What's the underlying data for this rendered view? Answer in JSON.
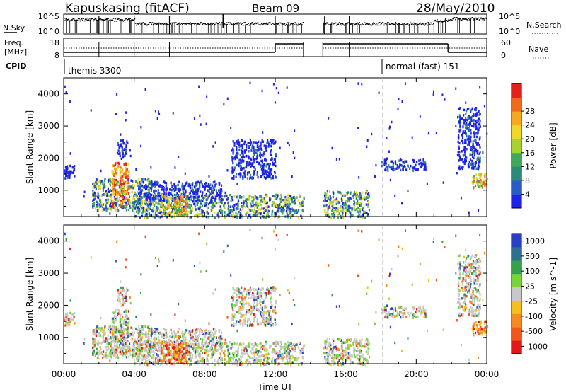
{
  "header": {
    "station": "Kapuskasing (fitACF)",
    "beam": "Beam 09",
    "date": "28/May/2010"
  },
  "top_panels": {
    "nsky_label": "N.Sky",
    "nsky_tick_high": "10^5",
    "nsky_tick_low": "10^0",
    "nsearch_label": "N.Search",
    "freq_label_1": "Freq.",
    "freq_label_2": "[MHz]",
    "freq_tick_high": "18",
    "freq_tick_low": "8",
    "nave_tick_high": "60",
    "nave_tick_low": "0",
    "nave_label": "Nave",
    "cpid_label": "CPID",
    "cpid_segments": [
      {
        "name": "themis 3300",
        "start_hr": 0
      },
      {
        "name": "normal (fast) 151",
        "start_hr": 18
      }
    ]
  },
  "x_axis": {
    "label": "Time UT",
    "ticks": [
      "00:00",
      "04:00",
      "08:00",
      "12:00",
      "16:00",
      "20:00",
      "00:00"
    ]
  },
  "y_axis": {
    "label": "Slant Range [km]",
    "ticks": [
      "1000",
      "2000",
      "3000",
      "4000"
    ]
  },
  "power_colorbar": {
    "label": "Power [dB]",
    "ticks": [
      "4",
      "8",
      "12",
      "16",
      "20",
      "24",
      "28"
    ],
    "colors": [
      "#1f22e8",
      "#2b5cc4",
      "#2d8a79",
      "#3fa85a",
      "#a8d32e",
      "#f2d72b",
      "#f7a81f",
      "#f06a1b",
      "#e5201a"
    ]
  },
  "velocity_colorbar": {
    "label": "Velocity [m s^-1]",
    "ticks": [
      "1000",
      "500",
      "100",
      "25",
      "-25",
      "-100",
      "-500",
      "-1000"
    ],
    "colors": [
      "#2a3fc4",
      "#2f6f8f",
      "#36a04d",
      "#78d634",
      "#c8c8c8",
      "#f5c01f",
      "#f58a1e",
      "#f3561b",
      "#e01818"
    ]
  },
  "chart_data": {
    "type": "heatmap",
    "x_range_hours": [
      0,
      24
    ],
    "y_range_km": [
      180,
      4500
    ],
    "data_gap_hours": [
      13.6,
      14.7
    ],
    "mode_change_hour": 18,
    "power_panel_scatter_regions": [
      {
        "t0": 0.0,
        "t1": 0.6,
        "r0": 1400,
        "r1": 1800,
        "level": "blue"
      },
      {
        "t0": 1.6,
        "t1": 5.0,
        "r0": 400,
        "r1": 1400,
        "level": "mixed"
      },
      {
        "t0": 2.7,
        "t1": 3.7,
        "r0": 500,
        "r1": 1900,
        "level": "red"
      },
      {
        "t0": 3.0,
        "t1": 3.6,
        "r0": 2000,
        "r1": 2600,
        "level": "blue"
      },
      {
        "t0": 3.9,
        "t1": 13.6,
        "r0": 180,
        "r1": 900,
        "level": "mixed"
      },
      {
        "t0": 4.2,
        "t1": 9.0,
        "r0": 700,
        "r1": 1300,
        "level": "blue"
      },
      {
        "t0": 5.5,
        "t1": 7.0,
        "r0": 200,
        "r1": 900,
        "level": "orange"
      },
      {
        "t0": 9.5,
        "t1": 12.0,
        "r0": 1400,
        "r1": 2600,
        "level": "blue"
      },
      {
        "t0": 14.7,
        "t1": 17.3,
        "r0": 180,
        "r1": 1000,
        "level": "mixed"
      },
      {
        "t0": 18.0,
        "t1": 20.5,
        "r0": 1650,
        "r1": 2000,
        "level": "blue"
      },
      {
        "t0": 22.3,
        "t1": 23.6,
        "r0": 1700,
        "r1": 3600,
        "level": "blue"
      },
      {
        "t0": 23.1,
        "t1": 24.0,
        "r0": 1100,
        "r1": 1600,
        "level": "orange"
      }
    ]
  }
}
